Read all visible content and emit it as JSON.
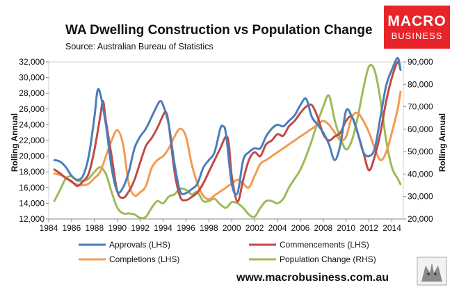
{
  "branding": {
    "logo_line1": "MACRO",
    "logo_line2": "BUSINESS",
    "logo_color": "#e8242b",
    "website": "www.macrobusiness.com.au"
  },
  "chart_data": {
    "type": "line",
    "title": "WA Dwelling Construction vs Population Change",
    "subtitle": "Source: Australian Bureau of Statistics",
    "ylabel_left": "Rolling Annual",
    "ylabel_right": "Rolling Annual",
    "ylim_left": [
      12000,
      32000
    ],
    "ylim_right": [
      20000,
      90000
    ],
    "xlim": [
      1984,
      2015
    ],
    "x_ticks": [
      "1984",
      "1986",
      "1988",
      "1990",
      "1992",
      "1994",
      "1996",
      "1998",
      "2000",
      "2002",
      "2004",
      "2006",
      "2008",
      "2010",
      "2012",
      "2014"
    ],
    "y_ticks_left": [
      "12,000",
      "14,000",
      "16,000",
      "18,000",
      "20,000",
      "22,000",
      "24,000",
      "26,000",
      "28,000",
      "30,000",
      "32,000"
    ],
    "y_ticks_right": [
      "20,000",
      "30,000",
      "40,000",
      "50,000",
      "60,000",
      "70,000",
      "80,000",
      "90,000"
    ],
    "grid": false,
    "series": [
      {
        "name": "Approvals (LHS)",
        "axis": "left",
        "color": "#4a7ebb",
        "x": [
          1984.5,
          1985,
          1985.5,
          1986,
          1986.5,
          1987,
          1987.5,
          1988,
          1988.25,
          1988.5,
          1989,
          1989.5,
          1990,
          1990.5,
          1991,
          1991.5,
          1992,
          1992.5,
          1993,
          1993.5,
          1993.75,
          1994,
          1994.5,
          1995,
          1995.5,
          1996,
          1996.5,
          1997,
          1997.5,
          1998,
          1998.5,
          1999,
          1999.25,
          1999.5,
          2000,
          2000.5,
          2001,
          2001.5,
          2002,
          2002.5,
          2003,
          2003.5,
          2004,
          2004.5,
          2005,
          2005.5,
          2006,
          2006.5,
          2007,
          2007.5,
          2008,
          2008.5,
          2009,
          2009.5,
          2010,
          2010.5,
          2011,
          2011.5,
          2012,
          2012.5,
          2013,
          2013.5,
          2014,
          2014.5,
          2014.75
        ],
        "values": [
          19500,
          19300,
          18600,
          17500,
          17000,
          17500,
          20000,
          25000,
          28200,
          28000,
          24000,
          18500,
          15500,
          16000,
          18000,
          21000,
          22500,
          23500,
          25000,
          26500,
          27000,
          26500,
          24000,
          19000,
          15500,
          15300,
          15800,
          16500,
          18500,
          19500,
          20500,
          23500,
          23800,
          22800,
          16500,
          15300,
          19500,
          20500,
          21000,
          21000,
          22500,
          23500,
          24000,
          23800,
          24500,
          25200,
          26500,
          27300,
          25000,
          24000,
          23000,
          21500,
          19500,
          21500,
          25800,
          25000,
          23000,
          20500,
          20000,
          21000,
          25000,
          29000,
          31000,
          32500,
          31000
        ]
      },
      {
        "name": "Commencements (LHS)",
        "axis": "left",
        "color": "#be4b48",
        "x": [
          1984.5,
          1985,
          1985.5,
          1986,
          1986.5,
          1987,
          1987.5,
          1988,
          1988.5,
          1988.75,
          1989,
          1989.5,
          1990,
          1990.5,
          1991,
          1991.5,
          1992,
          1992.5,
          1993,
          1993.5,
          1994,
          1994.25,
          1994.5,
          1995,
          1995.5,
          1996,
          1996.5,
          1997,
          1997.5,
          1998,
          1998.5,
          1999,
          1999.5,
          1999.75,
          2000,
          2000.5,
          2001,
          2001.5,
          2002,
          2002.5,
          2003,
          2003.5,
          2004,
          2004.5,
          2005,
          2005.5,
          2006,
          2006.5,
          2007,
          2007.5,
          2008,
          2008.5,
          2009,
          2009.5,
          2010,
          2010.5,
          2011,
          2011.5,
          2012,
          2012.5,
          2013,
          2013.5,
          2014,
          2014.5,
          2014.75
        ],
        "values": [
          18300,
          17800,
          17200,
          16800,
          16200,
          16800,
          17800,
          20800,
          25000,
          27000,
          24500,
          20000,
          15500,
          14700,
          15500,
          17000,
          19200,
          21300,
          22300,
          23600,
          25200,
          25600,
          24000,
          18000,
          14800,
          14400,
          14800,
          15400,
          16500,
          18000,
          19500,
          21000,
          22500,
          21500,
          17500,
          14200,
          17000,
          19500,
          20500,
          20000,
          21500,
          22000,
          22800,
          22600,
          23800,
          24500,
          25500,
          26300,
          26500,
          25000,
          22800,
          22000,
          22500,
          23000,
          24500,
          25000,
          23000,
          20500,
          18200,
          20000,
          23000,
          27000,
          30000,
          32000,
          31000
        ]
      },
      {
        "name": "Completions (LHS)",
        "axis": "left",
        "color": "#f39b4e",
        "x": [
          1984.5,
          1985,
          1985.5,
          1986,
          1986.5,
          1987,
          1987.5,
          1988,
          1988.5,
          1989,
          1989.5,
          1990,
          1990.5,
          1991,
          1991.5,
          1992,
          1992.5,
          1993,
          1993.5,
          1994,
          1994.5,
          1995,
          1995.5,
          1996,
          1996.5,
          1997,
          1997.5,
          1998,
          1998.5,
          1999,
          1999.5,
          2000,
          2000.5,
          2001,
          2001.5,
          2002,
          2002.5,
          2003,
          2003.5,
          2004,
          2004.5,
          2005,
          2005.5,
          2006,
          2006.5,
          2007,
          2007.5,
          2008,
          2008.5,
          2009,
          2009.5,
          2010,
          2010.5,
          2011,
          2011.5,
          2012,
          2012.5,
          2013,
          2013.5,
          2014,
          2014.5,
          2014.75
        ],
        "values": [
          17800,
          17600,
          17300,
          16700,
          16400,
          16300,
          16500,
          17200,
          18000,
          20000,
          22000,
          23300,
          21500,
          16500,
          15000,
          15400,
          16200,
          18500,
          19500,
          20000,
          21000,
          22500,
          23500,
          22500,
          19000,
          16500,
          15000,
          14500,
          15000,
          15500,
          16000,
          16500,
          17000,
          16500,
          16000,
          17500,
          19000,
          19500,
          20000,
          20500,
          21000,
          21500,
          22000,
          22500,
          23000,
          23500,
          24000,
          24500,
          24000,
          23000,
          22000,
          22500,
          25000,
          25500,
          24500,
          23000,
          21000,
          19500,
          20500,
          23000,
          26000,
          28200
        ]
      },
      {
        "name": "Population Change (RHS)",
        "axis": "right",
        "color": "#9bbb59",
        "x": [
          1984.5,
          1985,
          1985.5,
          1986,
          1986.5,
          1987,
          1987.5,
          1988,
          1988.5,
          1989,
          1989.5,
          1990,
          1990.5,
          1991,
          1991.5,
          1992,
          1992.5,
          1993,
          1993.5,
          1994,
          1994.5,
          1995,
          1995.5,
          1996,
          1996.5,
          1997,
          1997.5,
          1998,
          1998.5,
          1999,
          1999.5,
          2000,
          2000.5,
          2001,
          2001.5,
          2002,
          2002.5,
          2003,
          2003.5,
          2004,
          2004.5,
          2005,
          2005.5,
          2006,
          2006.5,
          2007,
          2007.5,
          2008,
          2008.5,
          2009,
          2009.5,
          2010,
          2010.5,
          2011,
          2011.5,
          2012,
          2012.5,
          2013,
          2013.5,
          2014,
          2014.5,
          2014.75
        ],
        "values": [
          28000,
          33000,
          38000,
          39000,
          37000,
          37000,
          38000,
          41000,
          43000,
          40000,
          32000,
          25000,
          22500,
          22500,
          22000,
          20500,
          21000,
          25000,
          28000,
          27000,
          30000,
          31000,
          33500,
          33000,
          31000,
          32000,
          28000,
          28000,
          29000,
          26500,
          25000,
          27500,
          27000,
          25000,
          22000,
          21000,
          25000,
          28000,
          28000,
          27000,
          29000,
          34000,
          38000,
          42000,
          48000,
          55000,
          63000,
          70000,
          75000,
          64000,
          56000,
          51000,
          55000,
          65000,
          78000,
          88000,
          86000,
          73000,
          55000,
          43000,
          38000,
          35500
        ]
      }
    ]
  }
}
